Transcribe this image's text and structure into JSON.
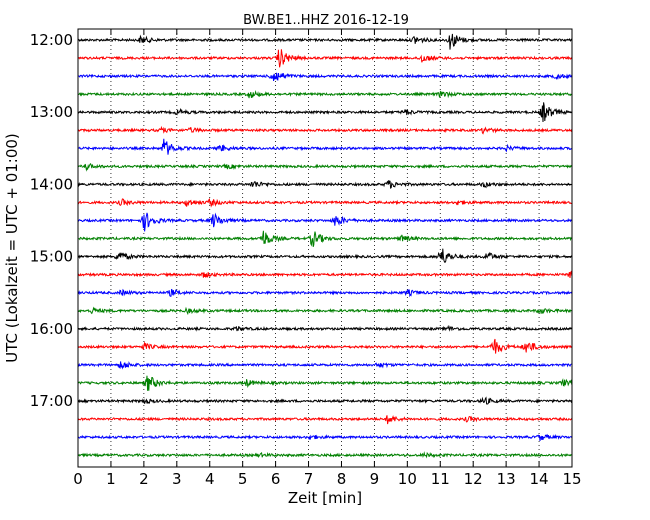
{
  "chart_data": {
    "type": "line",
    "title": "BW.BE1..HHZ 2016-12-19",
    "xlabel": "Zeit  [min]",
    "ylabel": "UTC (Lokalzeit = UTC + 01:00)",
    "xlim": [
      0,
      15
    ],
    "x_ticks": [
      "0",
      "1",
      "2",
      "3",
      "4",
      "5",
      "6",
      "7",
      "8",
      "9",
      "10",
      "11",
      "12",
      "13",
      "14",
      "15"
    ],
    "y_tick_labels": [
      "12:00",
      "13:00",
      "14:00",
      "15:00",
      "16:00",
      "17:00"
    ],
    "grid": "vertical dotted",
    "trace_interval_minutes": 15,
    "traces": [
      {
        "start": "12:00",
        "color": "#000000",
        "events": [
          [
            1.9,
            0.35
          ],
          [
            10.2,
            0.4
          ],
          [
            11.3,
            0.9
          ]
        ]
      },
      {
        "start": "12:15",
        "color": "#ff0000",
        "events": [
          [
            6.1,
            1.0
          ],
          [
            10.4,
            0.45
          ]
        ]
      },
      {
        "start": "12:30",
        "color": "#0000ff",
        "events": [
          [
            5.9,
            0.8
          ],
          [
            14.5,
            0.25
          ]
        ]
      },
      {
        "start": "12:45",
        "color": "#008000",
        "events": [
          [
            5.2,
            0.35
          ],
          [
            11.0,
            0.3
          ]
        ]
      },
      {
        "start": "13:00",
        "color": "#000000",
        "events": [
          [
            3.0,
            0.25
          ],
          [
            9.9,
            0.25
          ],
          [
            14.1,
            1.0
          ]
        ]
      },
      {
        "start": "13:15",
        "color": "#ff0000",
        "events": [
          [
            2.5,
            0.2
          ],
          [
            3.4,
            0.2
          ],
          [
            12.3,
            0.25
          ]
        ]
      },
      {
        "start": "13:30",
        "color": "#0000ff",
        "events": [
          [
            2.6,
            0.9
          ],
          [
            4.3,
            0.3
          ],
          [
            13.0,
            0.2
          ]
        ]
      },
      {
        "start": "13:45",
        "color": "#008000",
        "events": [
          [
            0.2,
            0.3
          ],
          [
            4.5,
            0.2
          ]
        ]
      },
      {
        "start": "14:00",
        "color": "#000000",
        "events": [
          [
            5.3,
            0.35
          ],
          [
            9.4,
            0.4
          ],
          [
            12.3,
            0.25
          ]
        ]
      },
      {
        "start": "14:15",
        "color": "#ff0000",
        "events": [
          [
            1.3,
            0.3
          ],
          [
            3.3,
            0.35
          ],
          [
            4.0,
            0.3
          ],
          [
            11.5,
            0.2
          ]
        ]
      },
      {
        "start": "14:30",
        "color": "#0000ff",
        "events": [
          [
            2.0,
            1.0
          ],
          [
            4.1,
            0.7
          ],
          [
            7.8,
            0.55
          ]
        ]
      },
      {
        "start": "14:45",
        "color": "#008000",
        "events": [
          [
            5.6,
            0.85
          ],
          [
            7.1,
            0.85
          ],
          [
            9.8,
            0.3
          ]
        ]
      },
      {
        "start": "15:00",
        "color": "#000000",
        "events": [
          [
            1.2,
            0.55
          ],
          [
            11.0,
            1.0
          ],
          [
            12.4,
            0.4
          ]
        ]
      },
      {
        "start": "15:15",
        "color": "#ff0000",
        "events": [
          [
            3.8,
            0.25
          ],
          [
            14.9,
            0.25
          ]
        ]
      },
      {
        "start": "15:30",
        "color": "#0000ff",
        "events": [
          [
            1.3,
            0.25
          ],
          [
            2.8,
            0.3
          ],
          [
            10.0,
            0.25
          ]
        ]
      },
      {
        "start": "15:45",
        "color": "#008000",
        "events": [
          [
            0.4,
            0.25
          ],
          [
            3.3,
            0.2
          ],
          [
            14.0,
            0.25
          ]
        ]
      },
      {
        "start": "16:00",
        "color": "#000000",
        "events": [
          [
            4.8,
            0.2
          ],
          [
            11.2,
            0.2
          ]
        ]
      },
      {
        "start": "16:15",
        "color": "#ff0000",
        "events": [
          [
            2.0,
            0.3
          ],
          [
            12.6,
            0.85
          ],
          [
            13.6,
            0.65
          ]
        ]
      },
      {
        "start": "16:30",
        "color": "#0000ff",
        "events": [
          [
            1.3,
            0.4
          ],
          [
            9.1,
            0.2
          ]
        ]
      },
      {
        "start": "16:45",
        "color": "#008000",
        "events": [
          [
            2.1,
            0.85
          ],
          [
            5.1,
            0.3
          ],
          [
            14.7,
            0.3
          ]
        ]
      },
      {
        "start": "17:00",
        "color": "#000000",
        "events": [
          [
            2.0,
            0.2
          ],
          [
            12.3,
            0.35
          ]
        ]
      },
      {
        "start": "17:15",
        "color": "#ff0000",
        "events": [
          [
            9.4,
            0.4
          ],
          [
            11.8,
            0.2
          ]
        ]
      },
      {
        "start": "17:30",
        "color": "#0000ff",
        "events": [
          [
            7.0,
            0.2
          ],
          [
            14.0,
            0.3
          ]
        ]
      },
      {
        "start": "17:45",
        "color": "#008000",
        "events": [
          [
            5.5,
            0.15
          ],
          [
            10.5,
            0.15
          ]
        ]
      }
    ]
  }
}
